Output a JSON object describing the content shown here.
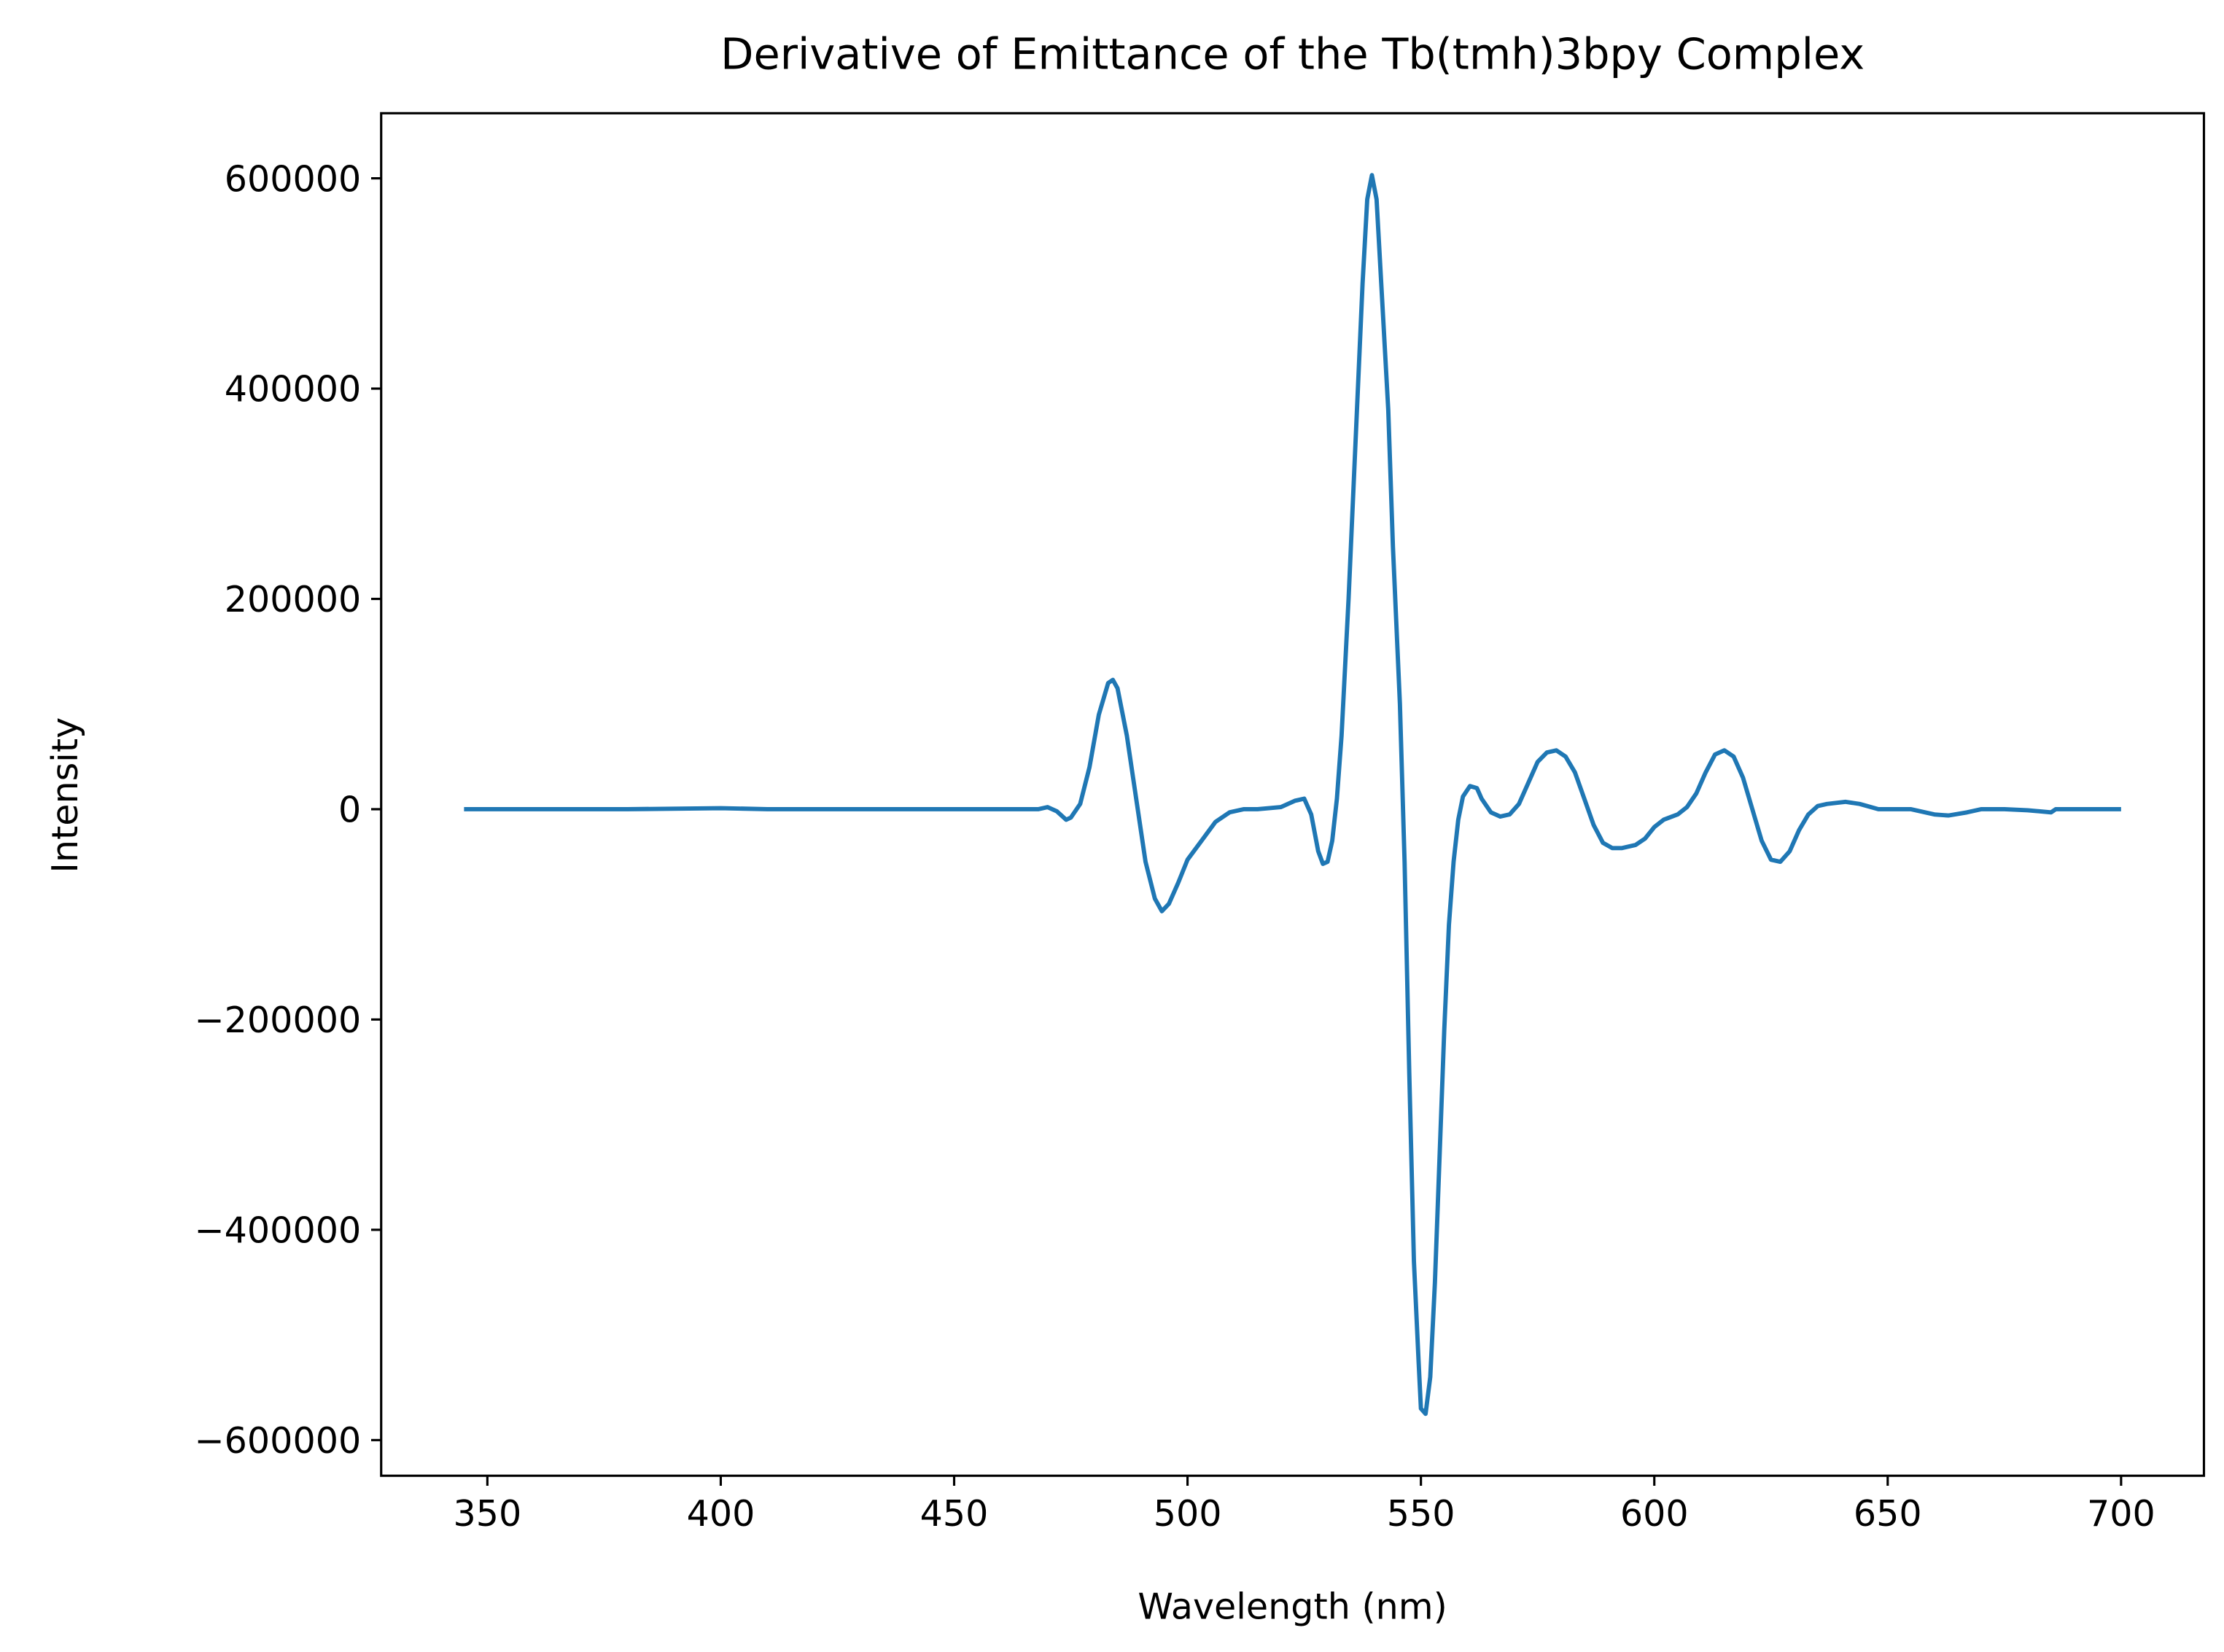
{
  "chart_data": {
    "type": "line",
    "title": "Derivative of Emittance of the Tb(tmh)3bpy Complex",
    "x_label": "Wavelength (nm)",
    "y_label": "Intensity",
    "x": [
      345,
      360,
      380,
      400,
      410,
      430,
      450,
      465,
      468,
      470,
      472,
      474,
      475,
      477,
      479,
      481,
      483,
      484,
      485,
      487,
      489,
      491,
      493,
      494.5,
      496,
      498,
      500,
      503,
      506,
      509,
      512,
      515,
      520,
      523,
      525,
      526.5,
      528,
      529,
      530,
      531,
      532,
      533,
      534.5,
      536,
      537.5,
      538.5,
      539.5,
      540.5,
      541.5,
      543,
      544,
      545.5,
      546.5,
      547.5,
      548.5,
      549.5,
      550,
      551,
      552,
      553,
      554,
      555,
      556,
      557,
      558,
      559,
      560.5,
      562,
      563,
      565,
      567,
      569,
      571,
      573,
      575,
      577,
      579,
      581,
      583,
      585,
      587,
      589,
      591,
      593,
      596,
      598,
      600,
      602,
      605,
      607,
      609,
      611,
      613,
      615,
      617,
      619,
      621,
      623,
      625,
      627,
      629,
      631,
      633,
      635,
      637,
      641,
      644,
      648,
      652,
      655,
      660,
      663,
      667,
      670,
      675,
      680,
      685,
      686,
      690,
      695,
      700
    ],
    "series": [
      {
        "name": "Intensity",
        "color": "#1f77b4",
        "values": [
          0,
          0,
          0,
          1000,
          0,
          0,
          0,
          0,
          0,
          2000,
          -2000,
          -10000,
          -8000,
          5000,
          40000,
          90000,
          120000,
          123000,
          115000,
          70000,
          10000,
          -50000,
          -85000,
          -97000,
          -90000,
          -70000,
          -48000,
          -30000,
          -12000,
          -3000,
          0,
          0,
          2000,
          8000,
          10000,
          -5000,
          -40000,
          -52000,
          -50000,
          -30000,
          10000,
          70000,
          200000,
          350000,
          500000,
          580000,
          603000,
          580000,
          500000,
          380000,
          250000,
          100000,
          -50000,
          -250000,
          -430000,
          -525000,
          -570000,
          -575000,
          -540000,
          -450000,
          -330000,
          -210000,
          -110000,
          -50000,
          -10000,
          12000,
          22000,
          20000,
          10000,
          -3000,
          -7000,
          -5000,
          5000,
          25000,
          45000,
          54000,
          56000,
          50000,
          35000,
          10000,
          -15000,
          -32000,
          -37000,
          -37000,
          -34000,
          -28000,
          -17000,
          -10000,
          -5000,
          2000,
          15000,
          35000,
          52000,
          56000,
          50000,
          30000,
          0,
          -30000,
          -48000,
          -50000,
          -40000,
          -20000,
          -5000,
          3000,
          5000,
          7000,
          5000,
          0,
          0,
          0,
          -5000,
          -6000,
          -3000,
          0,
          0,
          -1000,
          -3000,
          0,
          0,
          0,
          0
        ]
      }
    ],
    "xlim": [
      327.25,
      717.75
    ],
    "ylim": [
      -633900,
      661900
    ],
    "xticks": [
      350,
      400,
      450,
      500,
      550,
      600,
      650,
      700
    ],
    "yticks": [
      {
        "value": -600000,
        "label": "−600000"
      },
      {
        "value": -400000,
        "label": "−400000"
      },
      {
        "value": -200000,
        "label": "−200000"
      },
      0,
      200000,
      400000,
      600000
    ]
  }
}
